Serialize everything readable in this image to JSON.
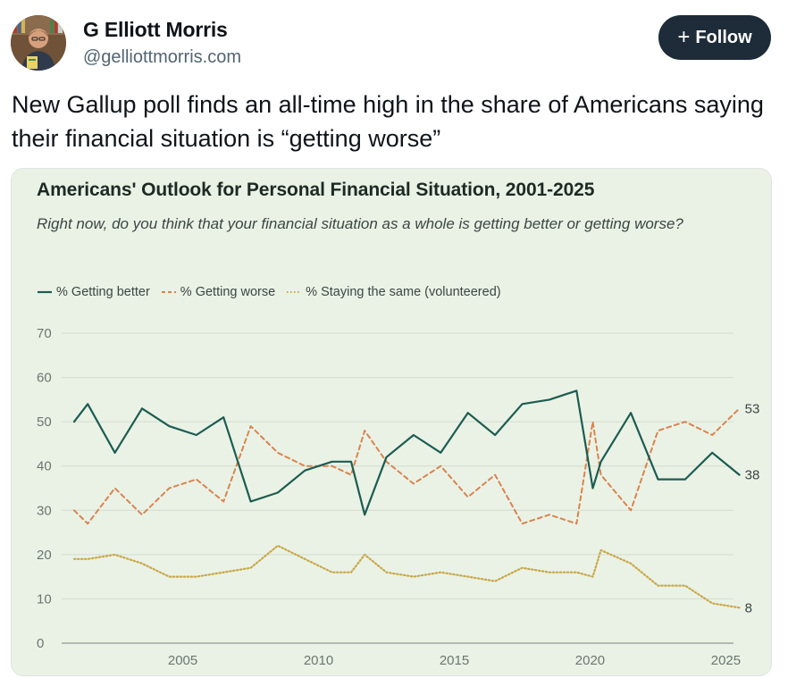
{
  "author": {
    "name": "G Elliott Morris",
    "handle": "@gelliottmorris.com"
  },
  "follow_button": {
    "label": "Follow",
    "icon": "plus-icon"
  },
  "post": {
    "text": "New Gallup poll finds an all-time high in the share of Americans saying their financial situation is “getting worse”"
  },
  "colors": {
    "better": "#1d5c51",
    "worse": "#d9844f",
    "same": "#c9a849",
    "grid": "#d4dcd0",
    "card_bg": "#eaf2e6",
    "follow_bg": "#1e2b38"
  },
  "chart_data": {
    "type": "line",
    "title": "Americans' Outlook for Personal Financial Situation, 2001-2025",
    "subtitle": "Right now, do you think that your financial situation as a whole is getting better or getting worse?",
    "xlabel": "",
    "ylabel": "",
    "xlim": [
      2001,
      2025
    ],
    "ylim": [
      0,
      70
    ],
    "y_ticks": [
      0,
      10,
      20,
      30,
      40,
      50,
      60,
      70
    ],
    "x_ticks": [
      2005,
      2010,
      2015,
      2020,
      2025
    ],
    "grid": true,
    "legend_position": "top-left",
    "series": [
      {
        "name": "% Getting better",
        "style": "solid",
        "x": [
          2001,
          2001.5,
          2002.5,
          2003.5,
          2004.5,
          2005.5,
          2006.5,
          2007.5,
          2008.5,
          2009.5,
          2010.5,
          2011.2,
          2011.7,
          2012.5,
          2013.5,
          2014.5,
          2015.5,
          2016.5,
          2017.5,
          2018.5,
          2019.5,
          2020.1,
          2020.4,
          2021.5,
          2022.5,
          2023.5,
          2024.5,
          2025.5
        ],
        "values": [
          50,
          54,
          43,
          53,
          49,
          47,
          51,
          32,
          34,
          39,
          41,
          41,
          29,
          42,
          47,
          43,
          52,
          47,
          54,
          55,
          57,
          35,
          41,
          52,
          37,
          37,
          43,
          38
        ],
        "end_label": "38"
      },
      {
        "name": "% Getting worse",
        "style": "dashed",
        "x": [
          2001,
          2001.5,
          2002.5,
          2003.5,
          2004.5,
          2005.5,
          2006.5,
          2007.5,
          2008.5,
          2009.5,
          2010.5,
          2011.2,
          2011.7,
          2012.5,
          2013.5,
          2014.5,
          2015.5,
          2016.5,
          2017.5,
          2018.5,
          2019.5,
          2020.1,
          2020.4,
          2021.5,
          2022.5,
          2023.5,
          2024.5,
          2025.5
        ],
        "values": [
          30,
          27,
          35,
          29,
          35,
          37,
          32,
          49,
          43,
          40,
          40,
          38,
          48,
          41,
          36,
          40,
          33,
          38,
          27,
          29,
          27,
          50,
          38,
          30,
          48,
          50,
          47,
          53
        ],
        "end_label": "53"
      },
      {
        "name": "% Staying the same (volunteered)",
        "style": "dotted",
        "x": [
          2001,
          2001.5,
          2002.5,
          2003.5,
          2004.5,
          2005.5,
          2006.5,
          2007.5,
          2008.5,
          2009.5,
          2010.5,
          2011.2,
          2011.7,
          2012.5,
          2013.5,
          2014.5,
          2015.5,
          2016.5,
          2017.5,
          2018.5,
          2019.5,
          2020.1,
          2020.4,
          2021.5,
          2022.5,
          2023.5,
          2024.5,
          2025.5
        ],
        "values": [
          19,
          19,
          20,
          18,
          15,
          15,
          16,
          17,
          22,
          19,
          16,
          16,
          20,
          16,
          15,
          16,
          15,
          14,
          17,
          16,
          16,
          15,
          21,
          18,
          13,
          13,
          9,
          8
        ],
        "end_label": "8"
      }
    ]
  }
}
